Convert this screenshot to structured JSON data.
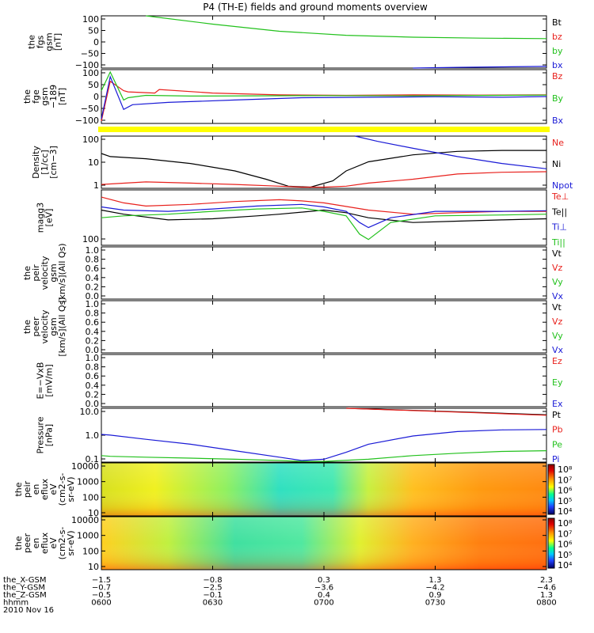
{
  "chart_data": {
    "title": "P4 (TH-E) fields and ground moments overview",
    "type": "line",
    "x_ticks": [
      "0600",
      "0630",
      "0700",
      "0730",
      "0800"
    ],
    "panels": [
      {
        "id": "fgs",
        "type": "line",
        "ylabel": [
          "the",
          "fgs",
          "gsm",
          "[nT]"
        ],
        "yticks": [
          "100",
          "50",
          "0",
          "−50",
          "−100"
        ],
        "ylim": [
          -110,
          110
        ],
        "legend": [
          {
            "name": "Bt",
            "color": "#000000"
          },
          {
            "name": "bz",
            "color": "#e8201c"
          },
          {
            "name": "by",
            "color": "#22c11c"
          },
          {
            "name": "bx",
            "color": "#1a1ad6"
          }
        ],
        "series": [
          {
            "name": "by",
            "color": "#22c11c",
            "t": [
              0.1,
              0.25,
              0.4,
              0.55,
              0.7,
              0.85,
              1.0
            ],
            "v": [
              110,
              75,
              45,
              28,
              20,
              16,
              14
            ]
          },
          {
            "name": "bx",
            "color": "#1a1ad6",
            "t": [
              0.7,
              0.8,
              0.9,
              1.0
            ],
            "v": [
              -110,
              -107,
              -105,
              -103
            ]
          }
        ]
      },
      {
        "id": "fgs_high",
        "type": "line",
        "ylabel": [
          "the",
          "fge",
          "gsm",
          "−189",
          "[nT]"
        ],
        "yticks": [
          "100",
          "50",
          "0",
          "−50",
          "−100"
        ],
        "ylim": [
          -120,
          110
        ],
        "legend": [
          {
            "name": "Bz",
            "color": "#e8201c"
          },
          {
            "name": "By",
            "color": "#22c11c"
          },
          {
            "name": "Bx",
            "color": "#1a1ad6"
          }
        ],
        "series": [
          {
            "name": "Bz",
            "color": "#e8201c",
            "t": [
              0,
              0.02,
              0.05,
              0.06,
              0.12,
              0.13,
              0.25,
              0.4,
              0.55,
              0.7,
              0.85,
              1.0
            ],
            "v": [
              -110,
              60,
              20,
              15,
              10,
              25,
              10,
              2,
              0,
              2,
              1,
              2
            ]
          },
          {
            "name": "By",
            "color": "#22c11c",
            "t": [
              0,
              0.02,
              0.05,
              0.06,
              0.1,
              0.2,
              0.35,
              0.5,
              0.7,
              0.9,
              1.0
            ],
            "v": [
              20,
              100,
              -20,
              -10,
              0,
              -3,
              -2,
              -1,
              -2,
              0,
              1
            ]
          },
          {
            "name": "Bx",
            "color": "#1a1ad6",
            "t": [
              0,
              0.02,
              0.05,
              0.07,
              0.15,
              0.3,
              0.45,
              0.6,
              0.75,
              0.9,
              1.0
            ],
            "v": [
              -100,
              80,
              -60,
              -40,
              -30,
              -20,
              -10,
              -8,
              -6,
              -8,
              -5
            ]
          }
        ]
      },
      {
        "id": "density",
        "type": "line",
        "log": true,
        "ylabel": [
          "Density",
          "[1/cc]",
          "[cm−3]"
        ],
        "yticks": [
          "100",
          "10",
          "1"
        ],
        "ylim": [
          0.3,
          300
        ],
        "legend": [
          {
            "name": "Ne",
            "color": "#e8201c"
          },
          {
            "name": "Ni",
            "color": "#000000"
          },
          {
            "name": "Npot",
            "color": "#1a1ad6"
          }
        ],
        "series": [
          {
            "name": "Ni",
            "color": "#000000",
            "t": [
              0,
              0.02,
              0.1,
              0.2,
              0.3,
              0.37,
              0.42,
              0.47,
              0.52,
              0.55,
              0.6,
              0.7,
              0.8,
              0.9,
              1.0
            ],
            "v": [
              30,
              20,
              15,
              8,
              3,
              1,
              0.4,
              0.35,
              0.8,
              3,
              10,
              25,
              40,
              45,
              45
            ]
          },
          {
            "name": "Ne",
            "color": "#e8201c",
            "t": [
              0,
              0.1,
              0.2,
              0.3,
              0.4,
              0.45,
              0.5,
              0.55,
              0.6,
              0.7,
              0.8,
              0.9,
              1.0
            ],
            "v": [
              0.5,
              0.7,
              0.6,
              0.5,
              0.4,
              0.35,
              0.35,
              0.4,
              0.6,
              1.0,
              2.0,
              2.5,
              2.7
            ]
          },
          {
            "name": "Npot",
            "color": "#1a1ad6",
            "t": [
              0.57,
              0.62,
              0.7,
              0.8,
              0.9,
              1.0
            ],
            "v": [
              300,
              150,
              60,
              20,
              8,
              4
            ]
          }
        ]
      },
      {
        "id": "temp",
        "type": "line",
        "log": true,
        "ylabel": [
          "magg3",
          "[eV]"
        ],
        "yticks": [
          "100"
        ],
        "ylim": [
          100,
          5000
        ],
        "legend": [
          {
            "name": "Te⊥",
            "color": "#e8201c"
          },
          {
            "name": "Te||",
            "color": "#000000"
          },
          {
            "name": "Ti⊥",
            "color": "#1a1ad6"
          },
          {
            "name": "Ti||",
            "color": "#22c11c"
          }
        ],
        "series": [
          {
            "name": "Te⊥",
            "color": "#e8201c",
            "t": [
              0,
              0.05,
              0.1,
              0.2,
              0.3,
              0.4,
              0.45,
              0.5,
              0.6,
              0.7,
              0.8,
              0.9,
              1.0
            ],
            "v": [
              3000,
              2000,
              1600,
              1800,
              2200,
              2500,
              2300,
              2000,
              1200,
              900,
              1000,
              1100,
              1100
            ]
          },
          {
            "name": "Te||",
            "color": "#000000",
            "t": [
              0,
              0.05,
              0.15,
              0.25,
              0.35,
              0.4,
              0.5,
              0.55,
              0.6,
              0.7,
              0.8,
              0.9,
              1.0
            ],
            "v": [
              1200,
              900,
              600,
              650,
              800,
              900,
              1200,
              1000,
              700,
              500,
              550,
              600,
              650
            ]
          },
          {
            "name": "Ti⊥",
            "color": "#1a1ad6",
            "t": [
              0,
              0.05,
              0.15,
              0.25,
              0.35,
              0.45,
              0.5,
              0.55,
              0.58,
              0.6,
              0.65,
              0.75,
              0.9,
              1.0
            ],
            "v": [
              1500,
              1200,
              1100,
              1300,
              1600,
              1800,
              1500,
              1100,
              500,
              350,
              700,
              1100,
              1100,
              1150
            ]
          },
          {
            "name": "Ti||",
            "color": "#22c11c",
            "t": [
              0,
              0.05,
              0.15,
              0.25,
              0.35,
              0.45,
              0.5,
              0.55,
              0.58,
              0.6,
              0.65,
              0.75,
              0.9,
              1.0
            ],
            "v": [
              700,
              800,
              900,
              1100,
              1300,
              1400,
              1100,
              800,
              220,
              150,
              500,
              800,
              850,
              900
            ]
          }
        ]
      },
      {
        "id": "peir_vel",
        "type": "line",
        "ylabel": [
          "the",
          "peir",
          "velocity",
          "gsm",
          "[km/s](All Qs)"
        ],
        "yticks": [
          "1.0",
          "0.8",
          "0.6",
          "0.4",
          "0.2",
          "0.0"
        ],
        "ylim": [
          0,
          1
        ],
        "legend": [
          {
            "name": "Vt",
            "color": "#000000"
          },
          {
            "name": "Vz",
            "color": "#e8201c"
          },
          {
            "name": "Vy",
            "color": "#22c11c"
          },
          {
            "name": "Vx",
            "color": "#1a1ad6"
          }
        ],
        "series": []
      },
      {
        "id": "peer_vel",
        "type": "line",
        "ylabel": [
          "the",
          "peer",
          "velocity",
          "gsm",
          "[km/s](All Qs)"
        ],
        "yticks": [
          "1.0",
          "0.8",
          "0.6",
          "0.4",
          "0.2",
          "0.0"
        ],
        "ylim": [
          0,
          1
        ],
        "legend": [
          {
            "name": "Vt",
            "color": "#000000"
          },
          {
            "name": "Vz",
            "color": "#e8201c"
          },
          {
            "name": "Vy",
            "color": "#22c11c"
          },
          {
            "name": "Vx",
            "color": "#1a1ad6"
          }
        ],
        "series": []
      },
      {
        "id": "efield",
        "type": "line",
        "ylabel": [
          "E=−VxB",
          "[mV/m]"
        ],
        "yticks": [
          "1.0",
          "0.8",
          "0.6",
          "0.4",
          "0.2",
          "0.0"
        ],
        "ylim": [
          0,
          1
        ],
        "legend": [
          {
            "name": "Ez",
            "color": "#e8201c"
          },
          {
            "name": "Ey",
            "color": "#22c11c"
          },
          {
            "name": "Ex",
            "color": "#1a1ad6"
          }
        ],
        "series": []
      },
      {
        "id": "pressure",
        "type": "line",
        "log": true,
        "ylabel": [
          "Pressure",
          "[nPa]"
        ],
        "yticks": [
          "10.0",
          "1.0",
          "0.1"
        ],
        "ylim": [
          0.02,
          40
        ],
        "legend": [
          {
            "name": "Pt",
            "color": "#000000"
          },
          {
            "name": "Pb",
            "color": "#e8201c"
          },
          {
            "name": "Pe",
            "color": "#22c11c"
          },
          {
            "name": "Pi",
            "color": "#1a1ad6"
          }
        ],
        "series": [
          {
            "name": "Pt",
            "color": "#000000",
            "t": [
              0.55,
              0.7,
              0.85,
              1.0
            ],
            "v": [
              40,
              30,
              22,
              16
            ]
          },
          {
            "name": "Pb",
            "color": "#e8201c",
            "t": [
              0.55,
              0.7,
              0.85,
              1.0
            ],
            "v": [
              40,
              29,
              21,
              15
            ]
          },
          {
            "name": "Pi",
            "color": "#1a1ad6",
            "t": [
              0,
              0.02,
              0.1,
              0.2,
              0.3,
              0.4,
              0.45,
              0.5,
              0.55,
              0.6,
              0.7,
              0.8,
              0.9,
              1.0
            ],
            "v": [
              1.0,
              0.9,
              0.5,
              0.25,
              0.1,
              0.04,
              0.025,
              0.03,
              0.08,
              0.25,
              0.8,
              1.5,
              1.9,
              2.0
            ]
          },
          {
            "name": "Pe",
            "color": "#22c11c",
            "t": [
              0,
              0.02,
              0.1,
              0.2,
              0.3,
              0.4,
              0.45,
              0.5,
              0.6,
              0.7,
              0.8,
              0.9,
              1.0
            ],
            "v": [
              0.05,
              0.045,
              0.04,
              0.035,
              0.03,
              0.025,
              0.022,
              0.022,
              0.03,
              0.05,
              0.07,
              0.09,
              0.1
            ]
          }
        ]
      },
      {
        "id": "peir_en",
        "type": "heatmap",
        "ylabel": [
          "the",
          "peir",
          "en",
          "eflux",
          "eV",
          "(cm2-s-",
          "sr-eV)"
        ],
        "yticks": [
          "10000",
          "1000",
          "100",
          "10"
        ],
        "colorbar": [
          "10⁸",
          "10⁷",
          "10⁶",
          "10⁵",
          "10⁴"
        ]
      },
      {
        "id": "peer_en",
        "type": "heatmap",
        "ylabel": [
          "the",
          "peer",
          "en",
          "eflux",
          "eV",
          "(cm2-s-",
          "sr-eV)"
        ],
        "yticks": [
          "10000",
          "1000",
          "100",
          "10"
        ],
        "colorbar": [
          "10⁸",
          "10⁷",
          "10⁶",
          "10⁵",
          "10⁴"
        ]
      }
    ],
    "footer": {
      "rows": [
        {
          "label": "the_X-GSM",
          "values": [
            "−1.5",
            "−0.8",
            "0.3",
            "1.3",
            "2.3"
          ]
        },
        {
          "label": "the_Y-GSM",
          "values": [
            "−0.7",
            "−2.5",
            "−3.6",
            "−4.2",
            "−4.6"
          ]
        },
        {
          "label": "the_Z-GSM",
          "values": [
            "−0.5",
            "−0.1",
            "0.4",
            "0.9",
            "1.3"
          ]
        },
        {
          "label": "hhmm",
          "values": [
            "0600",
            "0630",
            "0700",
            "0730",
            "0800"
          ]
        }
      ],
      "date": "2010 Nov 16"
    }
  }
}
